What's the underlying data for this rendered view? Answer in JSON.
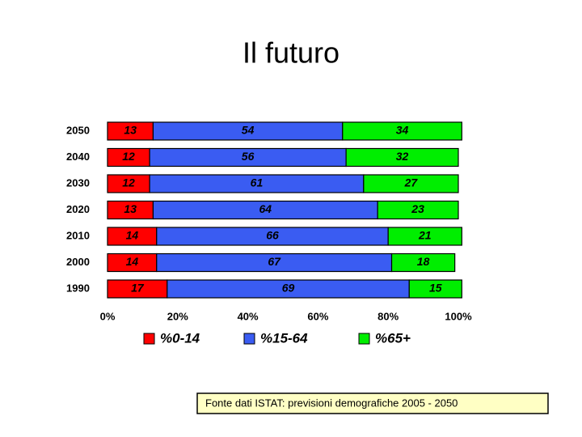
{
  "chart_data": {
    "type": "stacked-bar-horizontal",
    "title": "Il futuro",
    "categories": [
      "2050",
      "2040",
      "2030",
      "2020",
      "2010",
      "2000",
      "1990"
    ],
    "series": [
      {
        "name": "%0-14",
        "color": "#ff0000",
        "values": [
          13,
          12,
          12,
          13,
          14,
          14,
          17
        ]
      },
      {
        "name": "%15-64",
        "color": "#3a5cf2",
        "values": [
          54,
          56,
          61,
          64,
          66,
          67,
          69
        ]
      },
      {
        "name": "%65+",
        "color": "#00ee00",
        "values": [
          34,
          32,
          27,
          23,
          21,
          18,
          15
        ]
      }
    ],
    "xlim": [
      0,
      100
    ],
    "xticks": [
      {
        "value": 0,
        "label": "0%"
      },
      {
        "value": 20,
        "label": "20%"
      },
      {
        "value": 40,
        "label": "40%"
      },
      {
        "value": 60,
        "label": "60%"
      },
      {
        "value": 80,
        "label": "80%"
      },
      {
        "value": 100,
        "label": "100%"
      }
    ],
    "source": "Fonte dati ISTAT: previsioni demografiche 2005 - 2050"
  }
}
